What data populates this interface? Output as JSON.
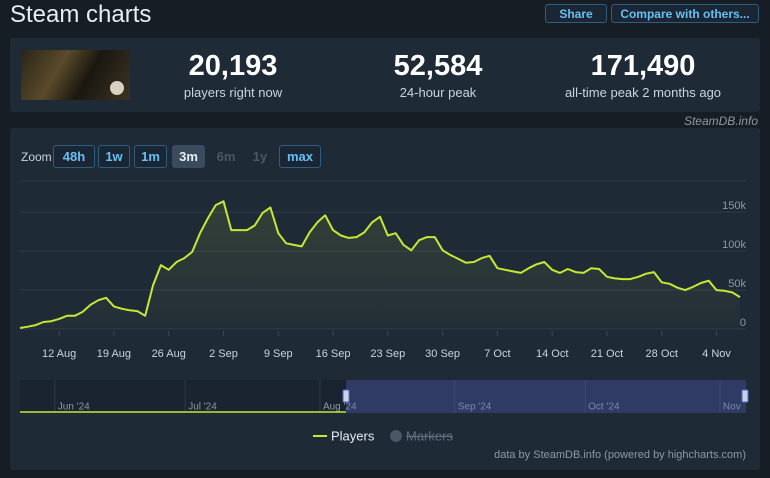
{
  "header": {
    "title": "Steam charts",
    "buttons": [
      "Share",
      "Compare with others..."
    ]
  },
  "stats": [
    {
      "value": "20,193",
      "label": "players right now"
    },
    {
      "value": "52,584",
      "label": "24-hour peak"
    },
    {
      "value": "171,490",
      "label": "all-time peak 2 months ago"
    }
  ],
  "source": "SteamDB.info",
  "zoom": {
    "label": "Zoom",
    "options": [
      "48h",
      "1w",
      "1m",
      "3m",
      "6m",
      "1y",
      "max"
    ],
    "active": "3m",
    "disabled": [
      "6m",
      "1y"
    ]
  },
  "chart_data": {
    "type": "line",
    "x": [
      "2024-08-07",
      "2024-08-08",
      "2024-08-09",
      "2024-08-10",
      "2024-08-11",
      "2024-08-12",
      "2024-08-13",
      "2024-08-14",
      "2024-08-15",
      "2024-08-16",
      "2024-08-17",
      "2024-08-18",
      "2024-08-19",
      "2024-08-20",
      "2024-08-21",
      "2024-08-22",
      "2024-08-23",
      "2024-08-24",
      "2024-08-25",
      "2024-08-26",
      "2024-08-27",
      "2024-08-28",
      "2024-08-29",
      "2024-08-30",
      "2024-08-31",
      "2024-09-01",
      "2024-09-02",
      "2024-09-03",
      "2024-09-04",
      "2024-09-05",
      "2024-09-06",
      "2024-09-07",
      "2024-09-08",
      "2024-09-09",
      "2024-09-10",
      "2024-09-11",
      "2024-09-12",
      "2024-09-13",
      "2024-09-14",
      "2024-09-15",
      "2024-09-16",
      "2024-09-17",
      "2024-09-18",
      "2024-09-19",
      "2024-09-20",
      "2024-09-21",
      "2024-09-22",
      "2024-09-23",
      "2024-09-24",
      "2024-09-25",
      "2024-09-26",
      "2024-09-27",
      "2024-09-28",
      "2024-09-29",
      "2024-09-30",
      "2024-10-01",
      "2024-10-02",
      "2024-10-03",
      "2024-10-04",
      "2024-10-05",
      "2024-10-06",
      "2024-10-07",
      "2024-10-08",
      "2024-10-09",
      "2024-10-10",
      "2024-10-11",
      "2024-10-12",
      "2024-10-13",
      "2024-10-14",
      "2024-10-15",
      "2024-10-16",
      "2024-10-17",
      "2024-10-18",
      "2024-10-19",
      "2024-10-20",
      "2024-10-21",
      "2024-10-22",
      "2024-10-23",
      "2024-10-24",
      "2024-10-25",
      "2024-10-26",
      "2024-10-27",
      "2024-10-28",
      "2024-10-29",
      "2024-10-30",
      "2024-10-31",
      "2024-11-01",
      "2024-11-02",
      "2024-11-03",
      "2024-11-04",
      "2024-11-05",
      "2024-11-06",
      "2024-11-07"
    ],
    "series": [
      {
        "name": "Players",
        "color": "#c6e834",
        "values": [
          1300,
          3000,
          5000,
          9000,
          10000,
          13000,
          17000,
          17000,
          22000,
          31000,
          37000,
          40000,
          29000,
          26000,
          24000,
          23000,
          17000,
          56000,
          82000,
          76000,
          86000,
          91000,
          99000,
          123000,
          142000,
          159000,
          164000,
          127000,
          127000,
          127000,
          133000,
          149000,
          156000,
          123000,
          110000,
          108000,
          106000,
          124000,
          137000,
          146000,
          127000,
          120000,
          117000,
          118000,
          124000,
          137000,
          144000,
          120000,
          123000,
          108000,
          101000,
          114000,
          118000,
          118000,
          101000,
          95000,
          90000,
          85000,
          86000,
          91000,
          94000,
          78000,
          76000,
          74000,
          72000,
          78000,
          83000,
          86000,
          76000,
          72000,
          77000,
          73000,
          72000,
          78000,
          77000,
          67000,
          65000,
          64000,
          64000,
          67000,
          71000,
          73000,
          60000,
          58000,
          53000,
          50000,
          54000,
          59000,
          62000,
          50000,
          49000,
          47000,
          41000
        ]
      }
    ],
    "inactive_legend": "Markers",
    "xlim": [
      "2024-08-07",
      "2024-11-07"
    ],
    "xticks": [
      {
        "value": "2024-08-12",
        "label": "12 Aug"
      },
      {
        "value": "2024-08-19",
        "label": "19 Aug"
      },
      {
        "value": "2024-08-26",
        "label": "26 Aug"
      },
      {
        "value": "2024-09-02",
        "label": "2 Sep"
      },
      {
        "value": "2024-09-09",
        "label": "9 Sep"
      },
      {
        "value": "2024-09-16",
        "label": "16 Sep"
      },
      {
        "value": "2024-09-23",
        "label": "23 Sep"
      },
      {
        "value": "2024-09-30",
        "label": "30 Sep"
      },
      {
        "value": "2024-10-07",
        "label": "7 Oct"
      },
      {
        "value": "2024-10-14",
        "label": "14 Oct"
      },
      {
        "value": "2024-10-21",
        "label": "21 Oct"
      },
      {
        "value": "2024-10-28",
        "label": "28 Oct"
      },
      {
        "value": "2024-11-04",
        "label": "4 Nov"
      }
    ],
    "ylim": [
      0,
      190000
    ],
    "yticks": [
      0,
      {
        "value": 50000,
        "label": "50k"
      },
      {
        "value": 100000,
        "label": "100k"
      },
      {
        "value": 150000,
        "label": "150k"
      }
    ],
    "grid": true,
    "navigator": {
      "xlim": [
        "2024-05-24",
        "2024-11-07"
      ],
      "xticks": [
        {
          "value": "2024-06-01",
          "label": "Jun '24"
        },
        {
          "value": "2024-07-01",
          "label": "Jul '24"
        },
        {
          "value": "2024-08-01",
          "label": "Aug '24"
        },
        {
          "value": "2024-09-01",
          "label": "Sep '24"
        },
        {
          "value": "2024-10-01",
          "label": "Oct '24"
        },
        {
          "value": "2024-11-01",
          "label": "Nov"
        }
      ]
    }
  },
  "credits": "data by SteamDB.info (powered by highcharts.com)"
}
